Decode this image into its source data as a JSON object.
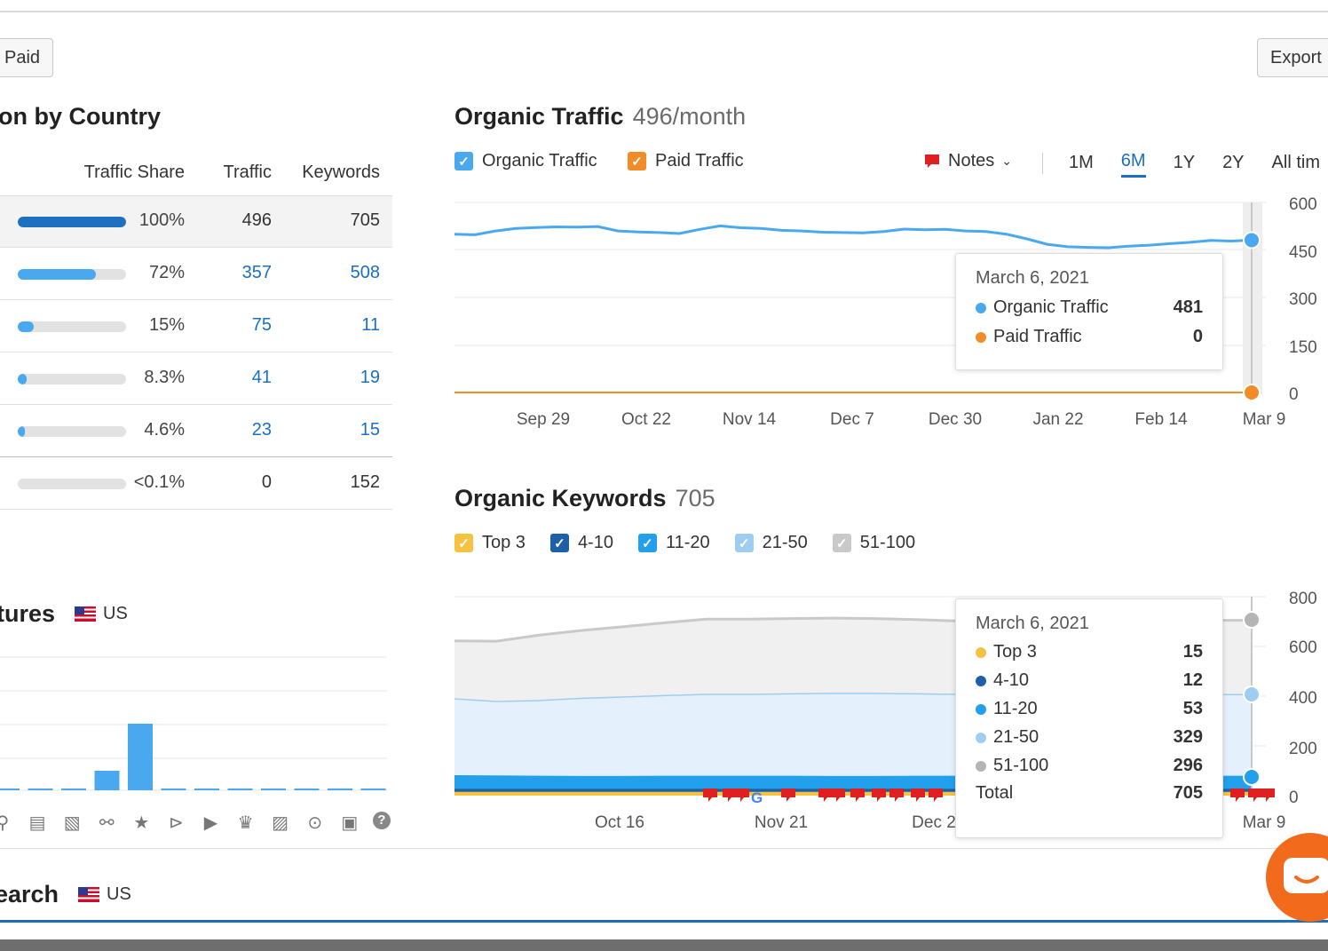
{
  "toolbar": {
    "paid_label": "Paid",
    "export_label": "Export"
  },
  "country": {
    "title": "on by Country",
    "headers": {
      "share": "Traffic Share",
      "traffic": "Traffic",
      "keywords": "Keywords"
    },
    "rows": [
      {
        "share": "100%",
        "share_value": 1.0,
        "traffic": "496",
        "keywords": "705",
        "bar_color": "#1d6fc0",
        "linked": false
      },
      {
        "share": "72%",
        "share_value": 0.72,
        "traffic": "357",
        "keywords": "508",
        "bar_color": "#4aa8ee",
        "linked": true
      },
      {
        "share": "15%",
        "share_value": 0.15,
        "traffic": "75",
        "keywords": "11",
        "bar_color": "#4aa8ee",
        "linked": true
      },
      {
        "share": "8.3%",
        "share_value": 0.083,
        "traffic": "41",
        "keywords": "19",
        "bar_color": "#4aa8ee",
        "linked": true
      },
      {
        "share": "4.6%",
        "share_value": 0.046,
        "traffic": "23",
        "keywords": "15",
        "bar_color": "#4aa8ee",
        "linked": true
      },
      {
        "share": "<0.1%",
        "share_value": 0.0,
        "traffic": "0",
        "keywords": "152",
        "bar_color": "#4aa8ee",
        "linked": false
      }
    ]
  },
  "features": {
    "title": "tures",
    "country": "US",
    "icons": [
      "pin-icon",
      "doc-icon",
      "image-icon",
      "link-icon",
      "star-icon",
      "play-circle-icon",
      "video-icon",
      "crown-icon",
      "photo-icon",
      "play-icon",
      "question-box-icon",
      "help-icon"
    ]
  },
  "search": {
    "title": "earch",
    "country": "US"
  },
  "organic_traffic": {
    "title": "Organic Traffic",
    "subtitle": "496/month",
    "legend": [
      {
        "label": "Organic Traffic",
        "color": "#4aa8ee"
      },
      {
        "label": "Paid Traffic",
        "color": "#f28c28"
      }
    ],
    "notes_label": "Notes",
    "ranges": [
      "1M",
      "6M",
      "1Y",
      "2Y",
      "All tim"
    ],
    "active_range": "6M",
    "tooltip": {
      "date": "March 6, 2021",
      "rows": [
        {
          "label": "Organic Traffic",
          "value": "481",
          "color": "#4aa8ee"
        },
        {
          "label": "Paid Traffic",
          "value": "0",
          "color": "#f28c28"
        }
      ]
    }
  },
  "organic_keywords": {
    "title": "Organic Keywords",
    "subtitle": "705",
    "legend": [
      {
        "label": "Top 3",
        "color": "#f5c242"
      },
      {
        "label": "4-10",
        "color": "#1d5fa8"
      },
      {
        "label": "11-20",
        "color": "#22a0ec"
      },
      {
        "label": "21-50",
        "color": "#9fcdf2"
      },
      {
        "label": "51-100",
        "color": "#c9c9c9"
      }
    ],
    "tooltip": {
      "date": "March 6, 2021",
      "rows": [
        {
          "label": "Top 3",
          "value": "15",
          "color": "#f5c242"
        },
        {
          "label": "4-10",
          "value": "12",
          "color": "#1d5fa8"
        },
        {
          "label": "11-20",
          "value": "53",
          "color": "#22a0ec"
        },
        {
          "label": "21-50",
          "value": "329",
          "color": "#9fcdf2"
        },
        {
          "label": "51-100",
          "value": "296",
          "color": "#b5b5b5"
        }
      ],
      "total_label": "Total",
      "total_value": "705"
    }
  },
  "chart_data": [
    {
      "type": "line",
      "title": "Organic Traffic",
      "x_ticks": [
        "Sep 29",
        "Oct 22",
        "Nov 14",
        "Dec 7",
        "Dec 30",
        "Jan 22",
        "Feb 14",
        "Mar 9"
      ],
      "y_ticks": [
        "600",
        "450",
        "300",
        "150",
        "0"
      ],
      "ylim": [
        0,
        600
      ],
      "series": [
        {
          "name": "Organic Traffic",
          "color": "#4aa8ee",
          "values": [
            500,
            498,
            510,
            518,
            521,
            523,
            522,
            524,
            510,
            507,
            505,
            502,
            515,
            526,
            520,
            518,
            512,
            510,
            506,
            505,
            504,
            508,
            516,
            514,
            515,
            510,
            508,
            500,
            485,
            468,
            460,
            458,
            457,
            462,
            465,
            470,
            474,
            480,
            478,
            481
          ]
        },
        {
          "name": "Paid Traffic",
          "color": "#f28c28",
          "values": [
            0,
            0,
            0,
            0,
            0,
            0,
            0,
            0,
            0,
            0,
            0,
            0,
            0,
            0,
            0,
            0,
            0,
            0,
            0,
            0,
            0,
            0,
            0,
            0,
            0,
            0,
            0,
            0,
            0,
            0,
            0,
            0,
            0,
            0,
            0,
            0,
            0,
            0,
            0,
            0
          ]
        }
      ]
    },
    {
      "type": "area",
      "title": "Organic Keywords",
      "x_ticks": [
        "Oct 16",
        "Nov 21",
        "Dec 2",
        "Mar 9"
      ],
      "y_ticks": [
        "800",
        "600",
        "400",
        "200",
        "0"
      ],
      "ylim": [
        0,
        800
      ],
      "series": [
        {
          "name": "Top 3",
          "color": "#f5c242",
          "values": [
            15,
            15,
            15,
            15,
            15,
            15,
            15,
            15,
            15,
            15,
            15,
            15,
            15,
            15,
            15,
            15,
            15,
            15,
            15,
            15
          ]
        },
        {
          "name": "4-10",
          "color": "#1d5fa8",
          "values": [
            12,
            12,
            12,
            12,
            12,
            12,
            12,
            12,
            12,
            12,
            12,
            12,
            12,
            12,
            12,
            12,
            12,
            12,
            12,
            12
          ]
        },
        {
          "name": "11-20",
          "color": "#22a0ec",
          "values": [
            55,
            54,
            53,
            52,
            52,
            53,
            53,
            53,
            53,
            52,
            52,
            53,
            53,
            53,
            53,
            53,
            53,
            53,
            53,
            53
          ]
        },
        {
          "name": "21-50",
          "color": "#9fcdf2",
          "values": [
            310,
            300,
            305,
            315,
            320,
            325,
            330,
            330,
            332,
            335,
            335,
            332,
            330,
            328,
            330,
            332,
            330,
            329,
            329,
            329
          ]
        },
        {
          "name": "51-100",
          "color": "#c9c9c9",
          "values": [
            230,
            240,
            260,
            270,
            280,
            290,
            300,
            300,
            300,
            300,
            298,
            296,
            292,
            290,
            288,
            292,
            296,
            296,
            296,
            296
          ]
        }
      ]
    },
    {
      "type": "bar",
      "title": "",
      "values": [
        0,
        0,
        0,
        0.22,
        0.75,
        0,
        0,
        0,
        0,
        0,
        0,
        0
      ]
    }
  ]
}
